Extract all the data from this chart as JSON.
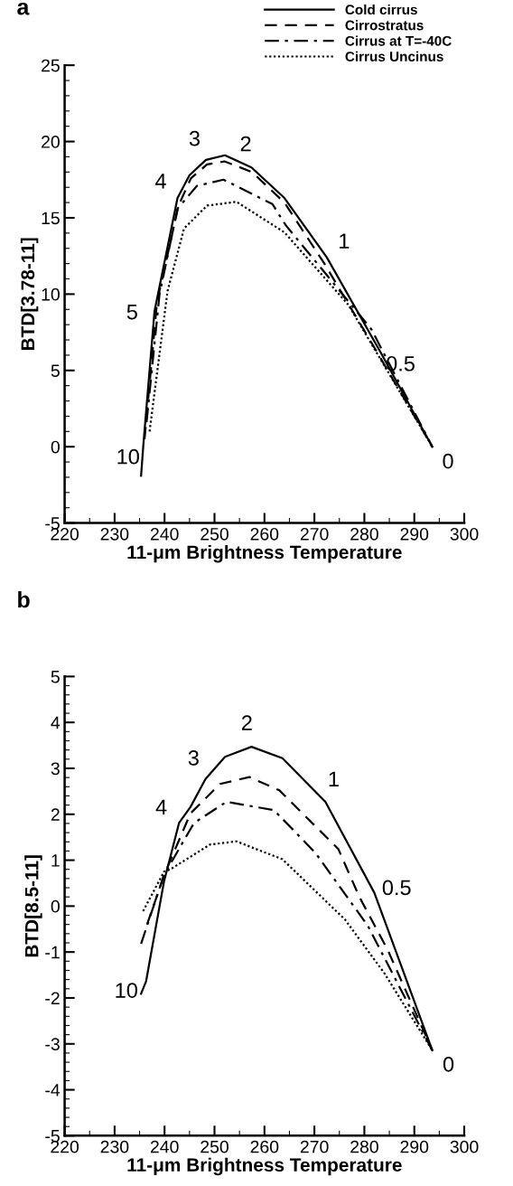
{
  "chart_data": [
    {
      "type": "line",
      "title": "a",
      "xlabel": "11-μm Brightness Temperature",
      "ylabel": "BTD[3.78-11]",
      "xlim": [
        220,
        300
      ],
      "xticks": [
        220,
        230,
        240,
        250,
        260,
        270,
        280,
        290,
        300
      ],
      "ylim": [
        -5,
        25
      ],
      "yticks": [
        -5,
        0,
        5,
        10,
        15,
        20,
        25
      ],
      "grid": false,
      "legend": "top right",
      "marker": "none",
      "series": [
        {
          "name": "Cold cirrus",
          "color": "#000000",
          "line_style": "solid",
          "x": [
            235.3,
            235.8,
            238,
            242.6,
            245,
            248.3,
            252.1,
            257.4,
            264,
            272.5,
            283.4,
            293.6
          ],
          "values": [
            -1.9,
            0.3,
            8.9,
            16.3,
            17.8,
            18.8,
            19.1,
            18.3,
            16.3,
            12.4,
            6.1,
            0
          ]
        },
        {
          "name": "Cirrostratus",
          "color": "#000000",
          "line_style": "dashed",
          "x": [
            236,
            238.5,
            242.8,
            245.3,
            248.5,
            252,
            257.5,
            264,
            272,
            282,
            293.6
          ],
          "values": [
            0.5,
            9.5,
            15.8,
            17.6,
            18.5,
            18.7,
            18.0,
            16.0,
            12,
            6.5,
            0
          ]
        },
        {
          "name": "Cirrus at T=-40C",
          "color": "#000000",
          "line_style": "dashdot",
          "x": [
            236.4,
            239,
            242.6,
            246.5,
            251.8,
            261.6,
            264.3,
            281.4,
            293.6
          ],
          "values": [
            1.6,
            10,
            15.6,
            17.1,
            17.5,
            15.9,
            14.5,
            7.7,
            0
          ]
        },
        {
          "name": "Cirrus Uncinus",
          "color": "#000000",
          "line_style": "dotted",
          "x": [
            237,
            240.6,
            243.9,
            248.5,
            254.4,
            264,
            276.8,
            293.6
          ],
          "values": [
            1,
            10.2,
            14.3,
            15.8,
            16.05,
            14.05,
            9.3,
            0
          ]
        }
      ],
      "annotations": [
        {
          "text": "10",
          "x": 235.8,
          "y": 0.3
        },
        {
          "text": "5",
          "x": 238,
          "y": 8.9
        },
        {
          "text": "4",
          "x": 242.6,
          "y": 16.3
        },
        {
          "text": "3",
          "x": 248.3,
          "y": 18.8
        },
        {
          "text": "2",
          "x": 257.4,
          "y": 18.3
        },
        {
          "text": "1",
          "x": 272.5,
          "y": 12.4
        },
        {
          "text": "0.5",
          "x": 283.4,
          "y": 6.1
        },
        {
          "text": "0",
          "x": 293.6,
          "y": 0
        }
      ]
    },
    {
      "type": "line",
      "title": "b",
      "xlabel": "11-μm Brightness Temperature",
      "ylabel": "BTD[8.5-11]",
      "xlim": [
        220,
        300
      ],
      "xticks": [
        220,
        230,
        240,
        250,
        260,
        270,
        280,
        290,
        300
      ],
      "ylim": [
        -5,
        5
      ],
      "yticks": [
        -5,
        -4,
        -3,
        -2,
        -1,
        0,
        1,
        2,
        3,
        4,
        5
      ],
      "grid": false,
      "legend": false,
      "marker": "none",
      "series": [
        {
          "color": "#000000",
          "line_style": "solid",
          "x": [
            235.3,
            236.3,
            239.9,
            242.9,
            245.2,
            248.2,
            252.1,
            257.4,
            263.6,
            272.2,
            282,
            293.6
          ],
          "values": [
            -1.91,
            -1.64,
            0.54,
            1.81,
            2.16,
            2.77,
            3.25,
            3.47,
            3.22,
            2.27,
            0.29,
            -3.14
          ]
        },
        {
          "color": "#000000",
          "line_style": "dashed",
          "x": [
            236.5,
            240,
            245.2,
            251.1,
            257,
            263,
            270.2,
            274.8,
            279,
            284.7,
            293.6
          ],
          "values": [
            -0.4,
            0.7,
            2.02,
            2.66,
            2.81,
            2.52,
            1.74,
            1.24,
            0.2,
            -0.96,
            -3.14
          ]
        },
        {
          "color": "#000000",
          "line_style": "dashdot",
          "x": [
            235.3,
            239.9,
            245.9,
            252.4,
            261.9,
            270.2,
            280.7,
            293.6
          ],
          "values": [
            -0.82,
            0.68,
            1.81,
            2.27,
            2.09,
            1.16,
            -0.43,
            -3.14
          ]
        },
        {
          "color": "#000000",
          "line_style": "dotted",
          "x": [
            235.7,
            239.9,
            241.3,
            249.1,
            254.4,
            263.6,
            276.1,
            284,
            293.6
          ],
          "values": [
            -0.11,
            0.75,
            0.81,
            1.34,
            1.41,
            1.02,
            -0.29,
            -1.46,
            -3.14
          ]
        }
      ],
      "annotations": [
        {
          "text": "10",
          "x": 236.3,
          "y": -1.64
        },
        {
          "text": "4",
          "x": 242.9,
          "y": 1.81
        },
        {
          "text": "3",
          "x": 248.2,
          "y": 2.77
        },
        {
          "text": "2",
          "x": 257.4,
          "y": 3.47
        },
        {
          "text": "1",
          "x": 272.2,
          "y": 2.27
        },
        {
          "text": "0.5",
          "x": 282,
          "y": 0.29
        },
        {
          "text": "0",
          "x": 293.6,
          "y": -3.14
        }
      ]
    }
  ]
}
